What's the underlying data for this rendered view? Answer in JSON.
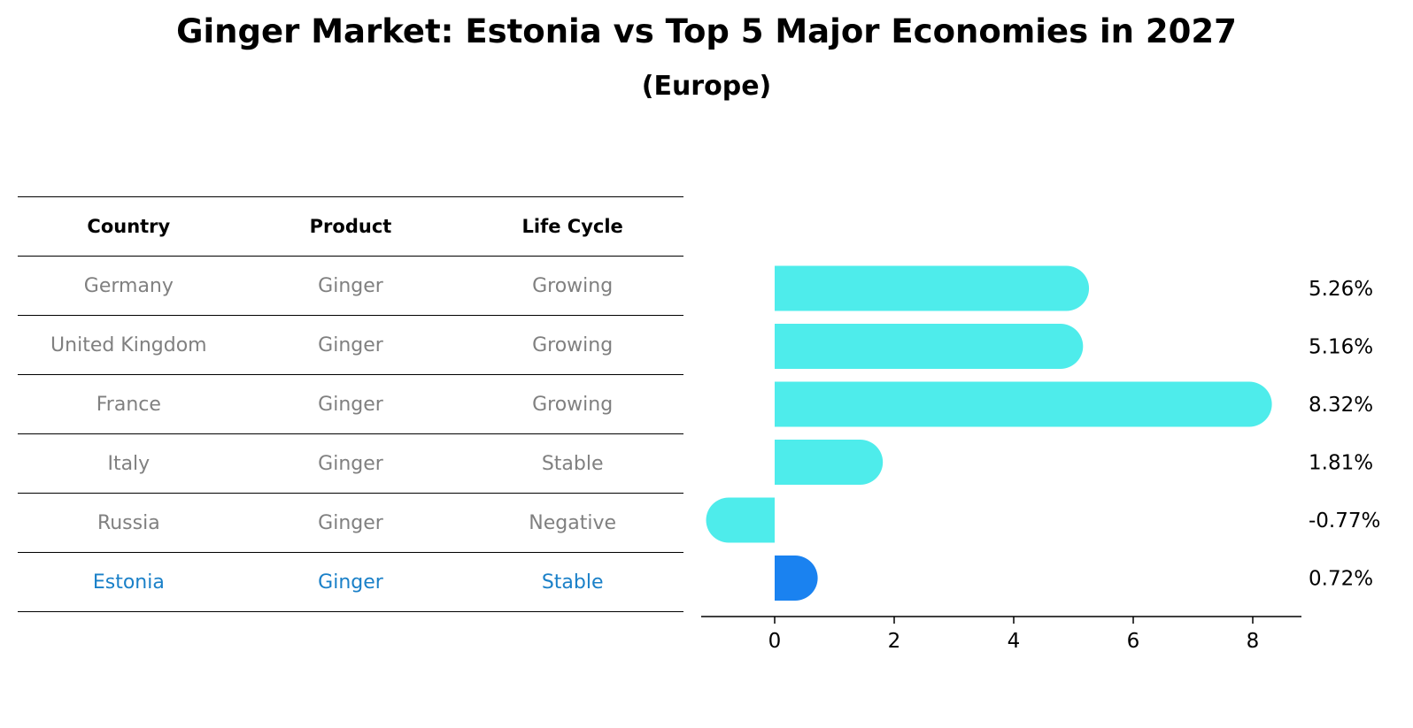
{
  "title": "Ginger Market: Estonia vs Top 5 Major Economies in 2027",
  "subtitle": "(Europe)",
  "table": {
    "headers": [
      "Country",
      "Product",
      "Life Cycle"
    ],
    "rows": [
      {
        "country": "Germany",
        "product": "Ginger",
        "life_cycle": "Growing"
      },
      {
        "country": "United Kingdom",
        "product": "Ginger",
        "life_cycle": "Growing"
      },
      {
        "country": "France",
        "product": "Ginger",
        "life_cycle": "Growing"
      },
      {
        "country": "Italy",
        "product": "Ginger",
        "life_cycle": "Stable"
      },
      {
        "country": "Russia",
        "product": "Ginger",
        "life_cycle": "Negative"
      },
      {
        "country": "Estonia",
        "product": "Ginger",
        "life_cycle": "Stable"
      }
    ]
  },
  "chart_data": {
    "type": "bar",
    "orientation": "horizontal",
    "categories": [
      "Germany",
      "United Kingdom",
      "France",
      "Italy",
      "Russia",
      "Estonia"
    ],
    "values": [
      5.26,
      5.16,
      8.32,
      1.81,
      -0.77,
      0.72
    ],
    "value_labels": [
      "5.26%",
      "5.16%",
      "8.32%",
      "1.81%",
      "-0.77%",
      "0.72%"
    ],
    "highlight_category": "Estonia",
    "xlim": [
      -1.2,
      8.75
    ],
    "xticks": [
      0,
      2,
      4,
      6,
      8
    ],
    "grid": false,
    "colors": {
      "default": "#4eeceb",
      "highlight": "#1a82f0"
    }
  },
  "colors": {
    "text_muted": "#808080",
    "text_highlight": "#1a80c8"
  }
}
